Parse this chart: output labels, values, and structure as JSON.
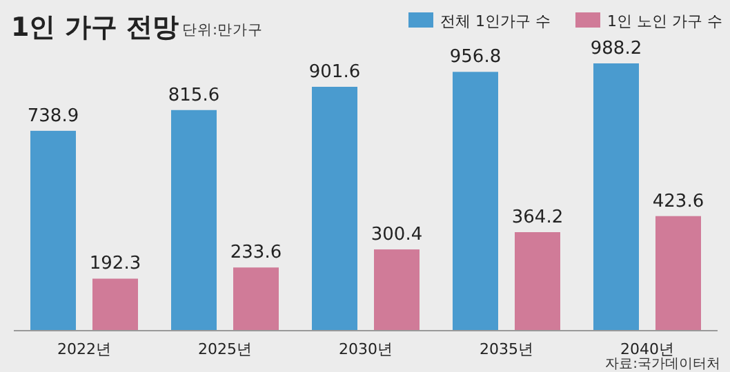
{
  "chart_data": {
    "type": "bar",
    "title": "1인 가구 전망",
    "subtitle": "단위:만가구",
    "categories": [
      "2022년",
      "2025년",
      "2030년",
      "2035년",
      "2040년"
    ],
    "series": [
      {
        "name": "전체 1인가구 수",
        "color": "#4a9bcf",
        "values": [
          738.9,
          815.6,
          901.6,
          956.8,
          988.2
        ]
      },
      {
        "name": "1인 노인 가구 수",
        "color": "#d07b98",
        "values": [
          192.3,
          233.6,
          300.4,
          364.2,
          423.6
        ]
      }
    ],
    "data_labels": true,
    "legend": "top right",
    "annotations": [
      "자료:국가데이터처"
    ]
  }
}
